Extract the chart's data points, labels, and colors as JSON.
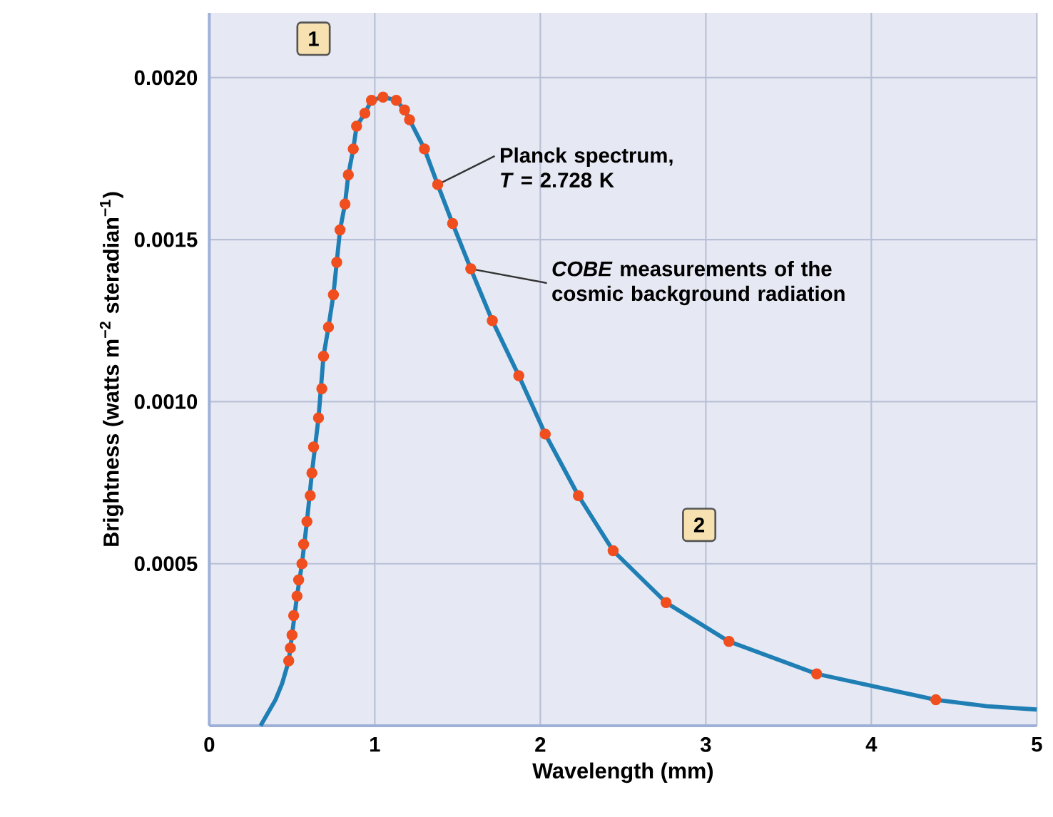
{
  "chart_data": {
    "type": "line",
    "xlabel": "Wavelength (mm)",
    "ylabel": "Brightness (watts m$^{−2}$ steradian$^{−1}$)",
    "xlim": [
      0,
      5
    ],
    "ylim": [
      0,
      0.0022
    ],
    "xticks": [
      0,
      1,
      2,
      3,
      4,
      5
    ],
    "yticks": [
      0.0005,
      {
        "value": 0.001,
        "label": "0.0010"
      },
      0.0015,
      {
        "value": 0.002,
        "label": "0.0020"
      }
    ],
    "grid": true,
    "series": [
      {
        "color": "#1f7fb5",
        "marker": "none",
        "line_style": "solid",
        "x": [
          0.31,
          0.4,
          0.44,
          0.48,
          0.5,
          0.53,
          0.56,
          0.59,
          0.62,
          0.66,
          0.69,
          0.72,
          0.75,
          0.79,
          0.82,
          0.84,
          0.87,
          0.89,
          0.94,
          0.98,
          1.05,
          1.13,
          1.18,
          1.21,
          1.3,
          1.38,
          1.47,
          1.58,
          1.71,
          1.87,
          2.03,
          2.23,
          2.44,
          2.76,
          3.14,
          3.67,
          4.39,
          4.7,
          5.0
        ],
        "values": [
          0,
          8e-05,
          0.00013,
          0.0002,
          0.00028,
          0.0004,
          0.0005,
          0.00063,
          0.00078,
          0.00095,
          0.00114,
          0.00123,
          0.00133,
          0.00153,
          0.00161,
          0.0017,
          0.00178,
          0.00185,
          0.00189,
          0.00193,
          0.00194,
          0.00193,
          0.0019,
          0.00187,
          0.00178,
          0.00167,
          0.00155,
          0.00141,
          0.00125,
          0.00108,
          0.0009,
          0.00071,
          0.00054,
          0.00038,
          0.00026,
          0.00016,
          8e-05,
          6e-05,
          5e-05
        ]
      },
      {
        "type": "scatter",
        "color": "#f04e1e",
        "marker": "circle",
        "x": [
          0.48,
          0.49,
          0.5,
          0.51,
          0.53,
          0.54,
          0.56,
          0.57,
          0.59,
          0.61,
          0.62,
          0.63,
          0.66,
          0.68,
          0.69,
          0.72,
          0.75,
          0.77,
          0.79,
          0.82,
          0.84,
          0.87,
          0.89,
          0.94,
          0.98,
          1.05,
          1.13,
          1.18,
          1.21,
          1.3,
          1.38,
          1.47,
          1.58,
          1.71,
          1.87,
          2.03,
          2.23,
          2.44,
          2.76,
          3.14,
          3.67,
          4.39
        ],
        "values": [
          0.0002,
          0.00024,
          0.00028,
          0.00034,
          0.0004,
          0.00045,
          0.0005,
          0.00056,
          0.00063,
          0.00071,
          0.00078,
          0.00086,
          0.00095,
          0.00104,
          0.00114,
          0.00123,
          0.00133,
          0.00143,
          0.00153,
          0.00161,
          0.0017,
          0.00178,
          0.00185,
          0.00189,
          0.00193,
          0.00194,
          0.00193,
          0.0019,
          0.00187,
          0.00178,
          0.00167,
          0.00155,
          0.00141,
          0.00125,
          0.00108,
          0.0009,
          0.00071,
          0.00054,
          0.00038,
          0.00026,
          0.00016,
          8e-05
        ]
      }
    ],
    "annotations": [
      {
        "text": "Planck spectrum, *T* = 2.728 K",
        "x": 1.38,
        "y": 0.00167
      },
      {
        "text": "*COBE* measurements of the cosmic background radiation",
        "x": 1.58,
        "y": 0.00141
      },
      {
        "text": "1",
        "x": 0.63,
        "y": 0.00212
      },
      {
        "text": "2",
        "x": 2.96,
        "y": 0.00062
      }
    ]
  }
}
